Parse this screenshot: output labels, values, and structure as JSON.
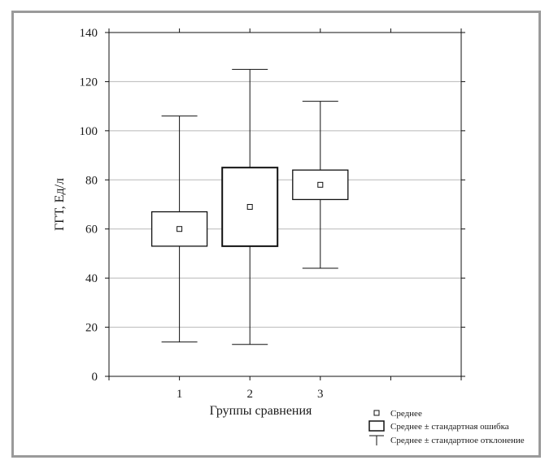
{
  "chart_data": {
    "type": "box",
    "xlabel": "Группы сравнения",
    "ylabel": "ГГТ, Ед/л",
    "ylim": [
      0,
      140
    ],
    "yticks": [
      0,
      20,
      40,
      60,
      80,
      100,
      120,
      140
    ],
    "grid": true,
    "legend_position": "bottom-right",
    "groups": [
      {
        "category": "1",
        "mean": 60,
        "se_low": 53,
        "se_high": 67,
        "sd_low": 14,
        "sd_high": 106
      },
      {
        "category": "2",
        "mean": 69,
        "se_low": 53,
        "se_high": 85,
        "sd_low": 13,
        "sd_high": 125
      },
      {
        "category": "3",
        "mean": 78,
        "se_low": 72,
        "se_high": 84,
        "sd_low": 44,
        "sd_high": 112
      }
    ],
    "legend": {
      "mean": "Среднее",
      "se": "Среднее ± стандартная ошибка",
      "sd": "Среднее ± стандартное отклонение"
    },
    "colors": {
      "frame": "#9a9a9a",
      "grid": "#b8b8b8",
      "ink": "#111111"
    }
  }
}
